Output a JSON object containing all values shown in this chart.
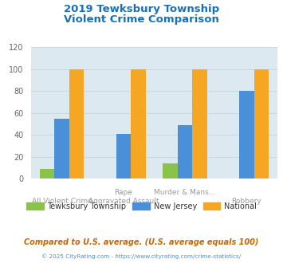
{
  "title_line1": "2019 Tewksbury Township",
  "title_line2": "Violent Crime Comparison",
  "title_color": "#1a6fba",
  "cat_labels_top": [
    "",
    "Rape",
    "Murder & Mans...",
    ""
  ],
  "cat_labels_bot": [
    "All Violent Crime",
    "Aggravated Assault",
    "",
    "Robbery"
  ],
  "series": {
    "Tewksbury Township": {
      "values": [
        9,
        0,
        14,
        0
      ],
      "color": "#8bc34a"
    },
    "New Jersey": {
      "values": [
        55,
        41,
        49,
        80
      ],
      "color": "#4a90d9"
    },
    "National": {
      "values": [
        100,
        100,
        100,
        100
      ],
      "color": "#f5a623"
    }
  },
  "ylim": [
    0,
    120
  ],
  "yticks": [
    0,
    20,
    40,
    60,
    80,
    100,
    120
  ],
  "plot_bg_color": "#dce9f0",
  "figure_bg_color": "#ffffff",
  "grid_color": "#c8d8e0",
  "legend_labels": [
    "Tewksbury Township",
    "New Jersey",
    "National"
  ],
  "legend_colors": [
    "#8bc34a",
    "#4a90d9",
    "#f5a623"
  ],
  "note_text": "Compared to U.S. average. (U.S. average equals 100)",
  "note_color": "#cc6600",
  "copyright_text": "© 2025 CityRating.com - https://www.cityrating.com/crime-statistics/",
  "copyright_color": "#4a90d9",
  "tick_label_color": "#666666",
  "axis_label_color": "#999999"
}
